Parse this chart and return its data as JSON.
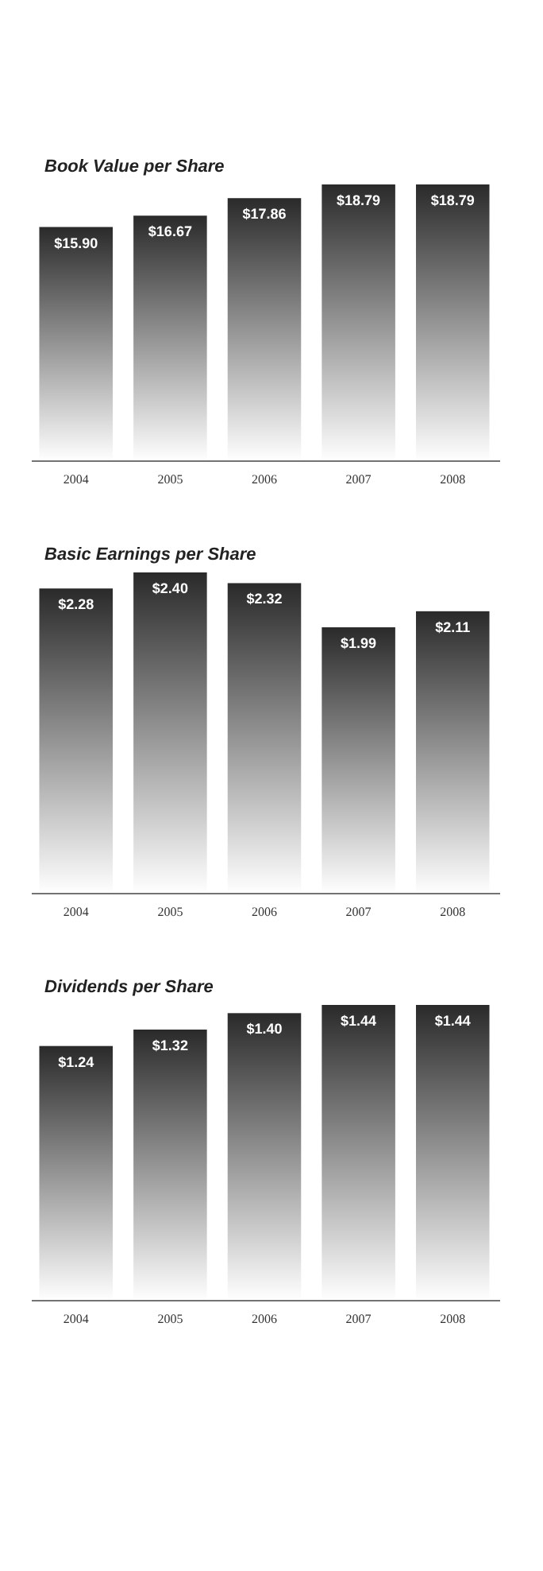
{
  "chart_data": [
    {
      "type": "bar",
      "title": "Book Value per Share",
      "categories": [
        "2004",
        "2005",
        "2006",
        "2007",
        "2008"
      ],
      "values": [
        15.9,
        16.67,
        17.86,
        18.79,
        18.79
      ],
      "value_labels": [
        "$15.90",
        "$16.67",
        "$17.86",
        "$18.79",
        "$18.79"
      ],
      "color": "#2a2a2a",
      "ylim": [
        0,
        18.79
      ],
      "tick_labels": "x"
    },
    {
      "type": "bar",
      "title": "Basic Earnings per Share",
      "categories": [
        "2004",
        "2005",
        "2006",
        "2007",
        "2008"
      ],
      "values": [
        2.28,
        2.4,
        2.32,
        1.99,
        2.11
      ],
      "value_labels": [
        "$2.28",
        "$2.40",
        "$2.32",
        "$1.99",
        "$2.11"
      ],
      "color": "#2a2a2a",
      "ylim": [
        0,
        2.4
      ],
      "tick_labels": "x"
    },
    {
      "type": "bar",
      "title": "Dividends per Share",
      "categories": [
        "2004",
        "2005",
        "2006",
        "2007",
        "2008"
      ],
      "values": [
        1.24,
        1.32,
        1.4,
        1.44,
        1.44
      ],
      "value_labels": [
        "$1.24",
        "$1.32",
        "$1.40",
        "$1.44",
        "$1.44"
      ],
      "color": "#2a2a2a",
      "ylim": [
        0,
        1.44
      ],
      "tick_labels": "x"
    }
  ]
}
